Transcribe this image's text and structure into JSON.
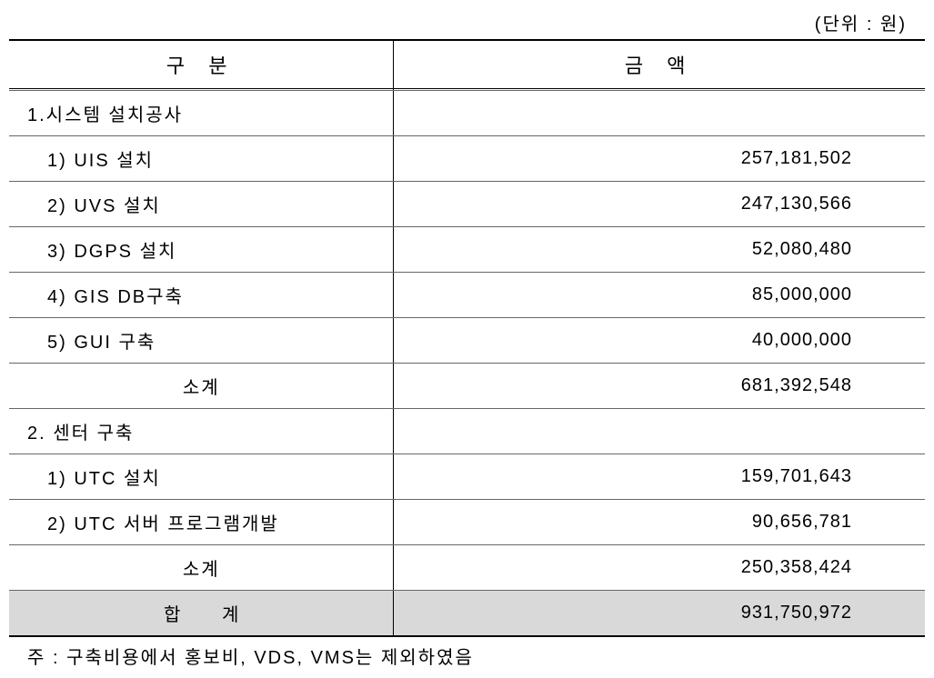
{
  "table": {
    "unit_label": "(단위 : 원)",
    "headers": {
      "category": "구 분",
      "amount": "금 액"
    },
    "sections": [
      {
        "title": "1.시스템 설치공사",
        "items": [
          {
            "label": "1) UIS 설치",
            "amount": "257,181,502"
          },
          {
            "label": "2) UVS 설치",
            "amount": "247,130,566"
          },
          {
            "label": "3) DGPS 설치",
            "amount": "52,080,480"
          },
          {
            "label": "4) GIS DB구축",
            "amount": "85,000,000"
          },
          {
            "label": "5) GUI 구축",
            "amount": "40,000,000"
          }
        ],
        "subtotal_label": "소계",
        "subtotal_amount": "681,392,548"
      },
      {
        "title": "2. 센터 구축",
        "items": [
          {
            "label": "1) UTC 설치",
            "amount": "159,701,643"
          },
          {
            "label": "2) UTC 서버 프로그램개발",
            "amount": "90,656,781"
          }
        ],
        "subtotal_label": "소계",
        "subtotal_amount": "250,358,424"
      }
    ],
    "total": {
      "label": "합 계",
      "amount": "931,750,972"
    },
    "footnote": "주 : 구축비용에서 홍보비, VDS, VMS는 제외하였음",
    "styling": {
      "background_color": "#ffffff",
      "total_row_bg": "#d9d9d9",
      "border_color": "#000000",
      "row_border_color": "#666666",
      "font_family": "Malgun Gothic",
      "base_font_size": 20,
      "header_font_size": 22,
      "column_widths": [
        "42%",
        "58%"
      ],
      "amount_align": "right",
      "label_align": "left"
    }
  }
}
